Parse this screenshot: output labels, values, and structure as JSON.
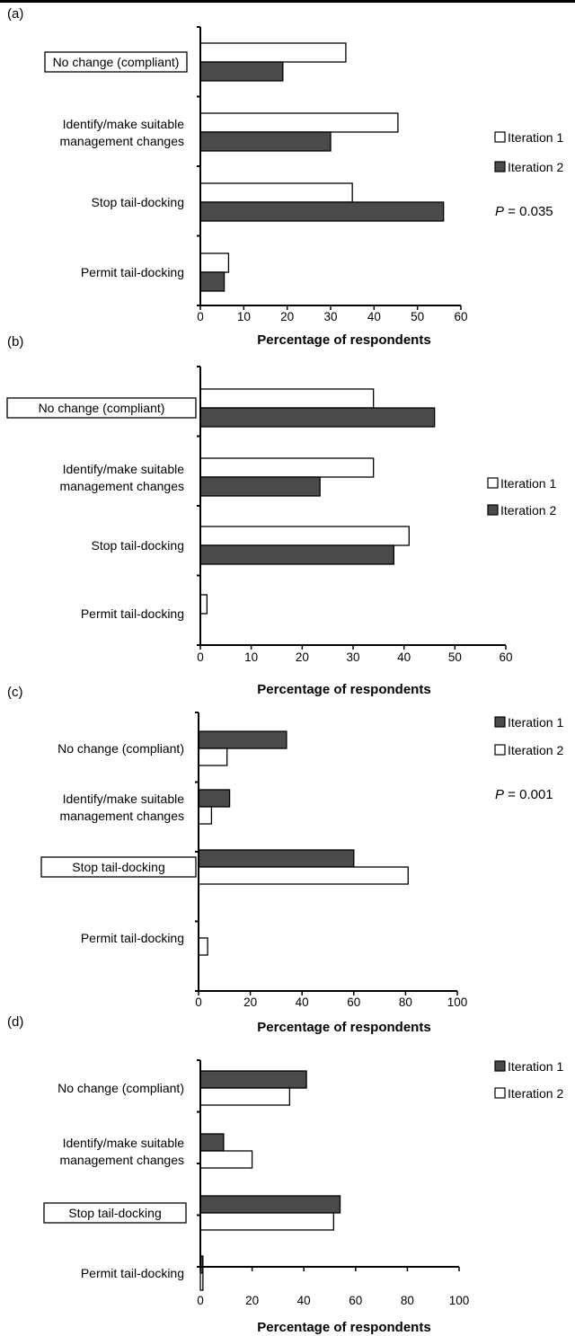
{
  "colors": {
    "white_bar": "#ffffff",
    "dark_bar": "#4a4a4a",
    "axis": "#000000"
  },
  "chart_data": [
    {
      "type": "bar",
      "orientation": "horizontal",
      "panel_label": "(a)",
      "categories": [
        "No change (compliant)",
        "Identify/make suitable\nmanagement changes",
        "Stop tail-docking",
        "Permit tail-docking"
      ],
      "boxed_category": 0,
      "series": [
        {
          "name": "Iteration 1",
          "color": "#ffffff",
          "values": [
            33.5,
            45.5,
            35,
            6.5
          ]
        },
        {
          "name": "Iteration 2",
          "color": "#4a4a4a",
          "values": [
            19,
            30,
            56,
            5.5
          ]
        }
      ],
      "series_order": [
        0,
        1
      ],
      "xlabel": "Percentage of respondents",
      "xlim": [
        0,
        60
      ],
      "xticks": [
        "0",
        "10",
        "20",
        "30",
        "40",
        "50",
        "60"
      ],
      "annotation": {
        "italic": "P",
        "rest": " = 0.035"
      }
    },
    {
      "type": "bar",
      "orientation": "horizontal",
      "panel_label": "(b)",
      "categories": [
        "No change (compliant)",
        "Identify/make suitable\nmanagement changes",
        "Stop tail-docking",
        "Permit tail-docking"
      ],
      "boxed_category": 0,
      "series": [
        {
          "name": "Iteration 1",
          "color": "#ffffff",
          "values": [
            34,
            34,
            41,
            1.3
          ]
        },
        {
          "name": "Iteration 2",
          "color": "#4a4a4a",
          "values": [
            46,
            23.5,
            38,
            0
          ]
        }
      ],
      "series_order": [
        0,
        1
      ],
      "xlabel": "Percentage of respondents",
      "xlim": [
        0,
        60
      ],
      "xticks": [
        "0",
        "10",
        "20",
        "30",
        "40",
        "50",
        "60"
      ],
      "annotation": null
    },
    {
      "type": "bar",
      "orientation": "horizontal",
      "panel_label": "(c)",
      "categories": [
        "No change (compliant)",
        "Identify/make suitable\nmanagement changes",
        "Stop tail-docking",
        "Permit tail-docking"
      ],
      "boxed_category": 2,
      "series": [
        {
          "name": "Iteration 1",
          "color": "#4a4a4a",
          "values": [
            34,
            12,
            60,
            0
          ]
        },
        {
          "name": "Iteration 2",
          "color": "#ffffff",
          "values": [
            11,
            5,
            81,
            3.5
          ]
        }
      ],
      "series_order": [
        0,
        1
      ],
      "xlabel": "Percentage of respondents",
      "xlim": [
        0,
        100
      ],
      "xticks": [
        "0",
        "20",
        "40",
        "60",
        "80",
        "100"
      ],
      "annotation": {
        "italic": "P",
        "rest": " = 0.001"
      }
    },
    {
      "type": "bar",
      "orientation": "horizontal",
      "panel_label": "(d)",
      "categories": [
        "No change (compliant)",
        "Identify/make suitable\nmanagement changes",
        "Stop tail-docking",
        "Permit tail-docking"
      ],
      "boxed_category": 2,
      "series": [
        {
          "name": "Iteration 1",
          "color": "#4a4a4a",
          "values": [
            41,
            9,
            54,
            1
          ]
        },
        {
          "name": "Iteration 2",
          "color": "#ffffff",
          "values": [
            34.5,
            20,
            51.5,
            1
          ]
        }
      ],
      "series_order": [
        0,
        1
      ],
      "xlabel": "Percentage of respondents",
      "xlim": [
        0,
        100
      ],
      "xticks": [
        "0",
        "20",
        "40",
        "60",
        "80",
        "100"
      ],
      "annotation": null
    }
  ]
}
